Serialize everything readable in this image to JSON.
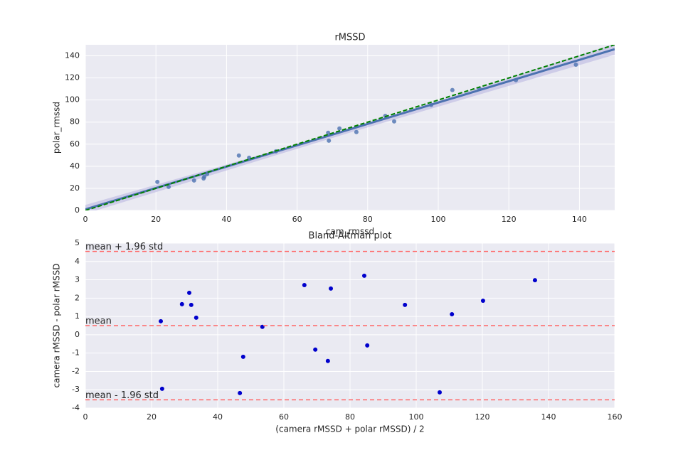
{
  "chart_data": [
    {
      "type": "scatter",
      "title": "rMSSD",
      "x_label": "cam_rmssd",
      "y_label": "polar_rmssd",
      "x": [
        20.4,
        23.6,
        30.8,
        33.5,
        33.7,
        34.5,
        43.5,
        46.4,
        54,
        68.8,
        69,
        72,
        76.8,
        85,
        87.5,
        98,
        104,
        111.7,
        122,
        139
      ],
      "values": [
        25.8,
        21.3,
        27.1,
        29,
        30.5,
        33,
        49.7,
        47.7,
        53.5,
        70.3,
        63.2,
        74.2,
        71,
        85.6,
        80.6,
        95.5,
        109,
        110,
        118,
        132
      ],
      "color": "#4c72b0",
      "fit_line": {
        "x": [
          0,
          150
        ],
        "values": [
          1,
          146
        ],
        "color": "#4c72b0"
      },
      "ci_band": {
        "x": [
          0,
          75,
          150
        ],
        "lower": [
          -3,
          70.5,
          141
        ],
        "upper": [
          5,
          73.5,
          151
        ],
        "color": "#b7b3e0"
      },
      "identity_line": {
        "x": [
          0,
          150
        ],
        "values": [
          0,
          150
        ],
        "color": "#008000"
      },
      "xlim": [
        0,
        150
      ],
      "ylim": [
        0,
        150
      ],
      "xticks": [
        0,
        20,
        40,
        60,
        80,
        100,
        120,
        140
      ],
      "yticks": [
        0,
        20,
        40,
        60,
        80,
        100,
        120,
        140
      ],
      "grid": true
    },
    {
      "type": "scatter",
      "title": "Bland-Altman plot",
      "x_label": "(camera rMSSD + polar rMSSD) / 2",
      "y_label": "camera rMSSD - polar rMSSD",
      "x": [
        22.8,
        23.2,
        29.2,
        31.4,
        32,
        33.5,
        46.7,
        47.7,
        53.5,
        66.2,
        69.5,
        73.3,
        74.2,
        84.3,
        85.2,
        96.6,
        107.1,
        110.8,
        120.2,
        135.9
      ],
      "values": [
        0.74,
        -2.95,
        1.67,
        2.29,
        1.63,
        0.93,
        -3.18,
        -1.2,
        0.43,
        2.71,
        -0.81,
        -1.43,
        2.52,
        3.22,
        -0.58,
        1.63,
        -3.14,
        1.12,
        1.86,
        2.98
      ],
      "color": "#0000cc",
      "hlines": [
        {
          "value": 4.55,
          "label": "mean + 1.96 std"
        },
        {
          "value": 0.5,
          "label": "mean"
        },
        {
          "value": -3.55,
          "label": "mean - 1.96 std"
        }
      ],
      "hline_color": "#ff6666",
      "xlim": [
        0,
        160
      ],
      "ylim": [
        -4,
        5
      ],
      "xticks": [
        0,
        20,
        40,
        60,
        80,
        100,
        120,
        140,
        160
      ],
      "yticks": [
        -4,
        -3,
        -2,
        -1,
        0,
        1,
        2,
        3,
        4,
        5
      ],
      "grid": true
    }
  ]
}
